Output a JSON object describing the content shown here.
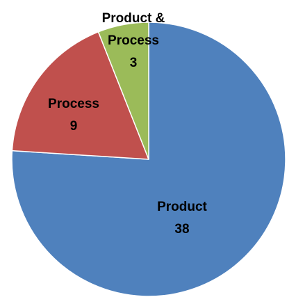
{
  "chart_data": {
    "type": "pie",
    "title": "",
    "start_angle_deg": 90,
    "direction": "clockwise",
    "legend": "none",
    "slices": [
      {
        "name": "Product",
        "value": 38,
        "color": "#4F81BD"
      },
      {
        "name": "Process",
        "value": 9,
        "color": "#C0504D"
      },
      {
        "name": "Product & Process",
        "value": 3,
        "color": "#9BBB59"
      }
    ]
  }
}
